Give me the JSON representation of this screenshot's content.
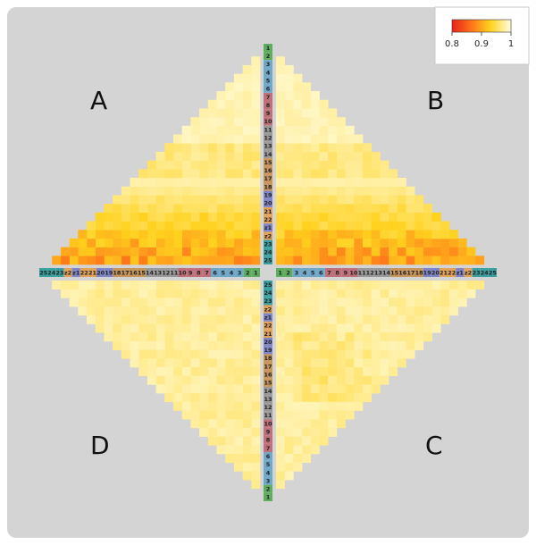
{
  "chart_data": {
    "type": "heatmap",
    "title": "",
    "quadrant_labels": [
      "A",
      "B",
      "C",
      "D"
    ],
    "tick_labels": [
      "1",
      "2",
      "3",
      "4",
      "5",
      "6",
      "7",
      "8",
      "9",
      "10",
      "11",
      "12",
      "13",
      "14",
      "15",
      "16",
      "17",
      "18",
      "19",
      "20",
      "21",
      "22",
      "z1",
      "z2",
      "23",
      "24",
      "25"
    ],
    "tick_colors": [
      "#5fae5f",
      "#5fae5f",
      "#6fa8c8",
      "#6fa8c8",
      "#6fa8c8",
      "#6fa8c8",
      "#c0707a",
      "#c0707a",
      "#c0707a",
      "#c0707a",
      "#9a9a9a",
      "#9a9a9a",
      "#9a9a9a",
      "#9a9a9a",
      "#c8955a",
      "#c8955a",
      "#c8955a",
      "#c8955a",
      "#7f86c8",
      "#7f86c8",
      "#e3a45a",
      "#e3a45a",
      "#7f86c8",
      "#e3a45a",
      "#3aa1a0",
      "#3aa1a0",
      "#3aa1a0"
    ],
    "legend": {
      "min": 0.8,
      "max": 1,
      "tick_labels": [
        "0.8",
        "0.9",
        "1"
      ],
      "colors": [
        "#e8201a",
        "#ff7a1a",
        "#ffd21e",
        "#fffde0"
      ]
    },
    "colors": {
      "background": "#d4d4d4",
      "panel": "#ffffff"
    }
  }
}
